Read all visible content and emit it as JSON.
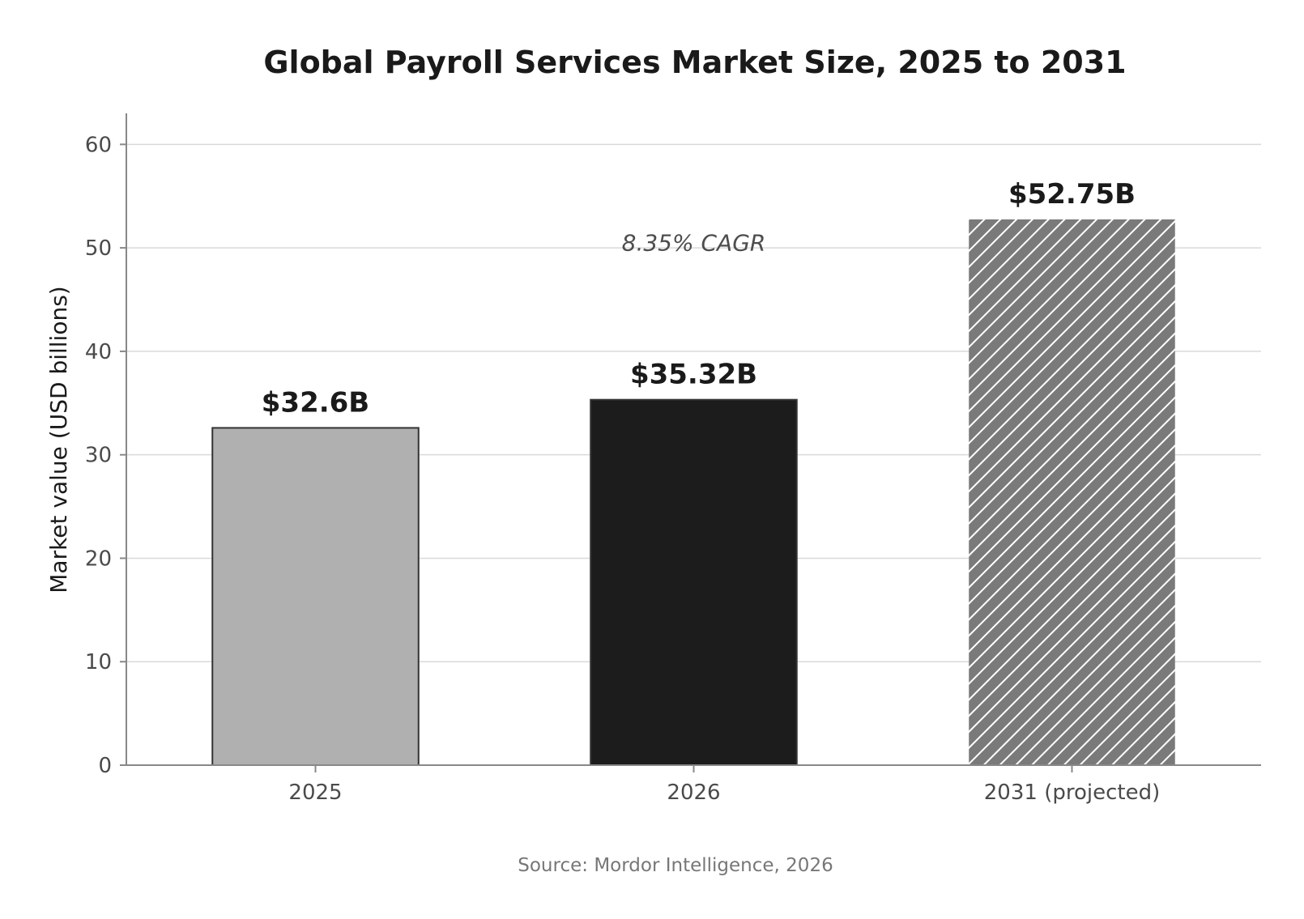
{
  "chart_data": {
    "type": "bar",
    "title": "Global Payroll Services Market Size, 2025 to 2031",
    "ylabel": "Market value (USD billions)",
    "xlabel": "",
    "categories": [
      "2025",
      "2026",
      "2031 (projected)"
    ],
    "values": [
      32.6,
      35.32,
      52.75
    ],
    "data_labels": [
      "$32.6B",
      "$35.32B",
      "$52.75B"
    ],
    "ylim": [
      0,
      63
    ],
    "yticks": [
      0,
      10,
      20,
      30,
      40,
      50,
      60
    ],
    "grid": "horizontal",
    "bar_colors": [
      "#b0b0b0",
      "#1c1c1c",
      "#7a7a7a"
    ],
    "bar_patterns": [
      "solid",
      "solid",
      "diagonal-hatch"
    ],
    "annotation": {
      "text": "8.35% CAGR",
      "x_category": "2026",
      "y": 50.5
    },
    "source": "Source: Mordor Intelligence, 2026"
  }
}
